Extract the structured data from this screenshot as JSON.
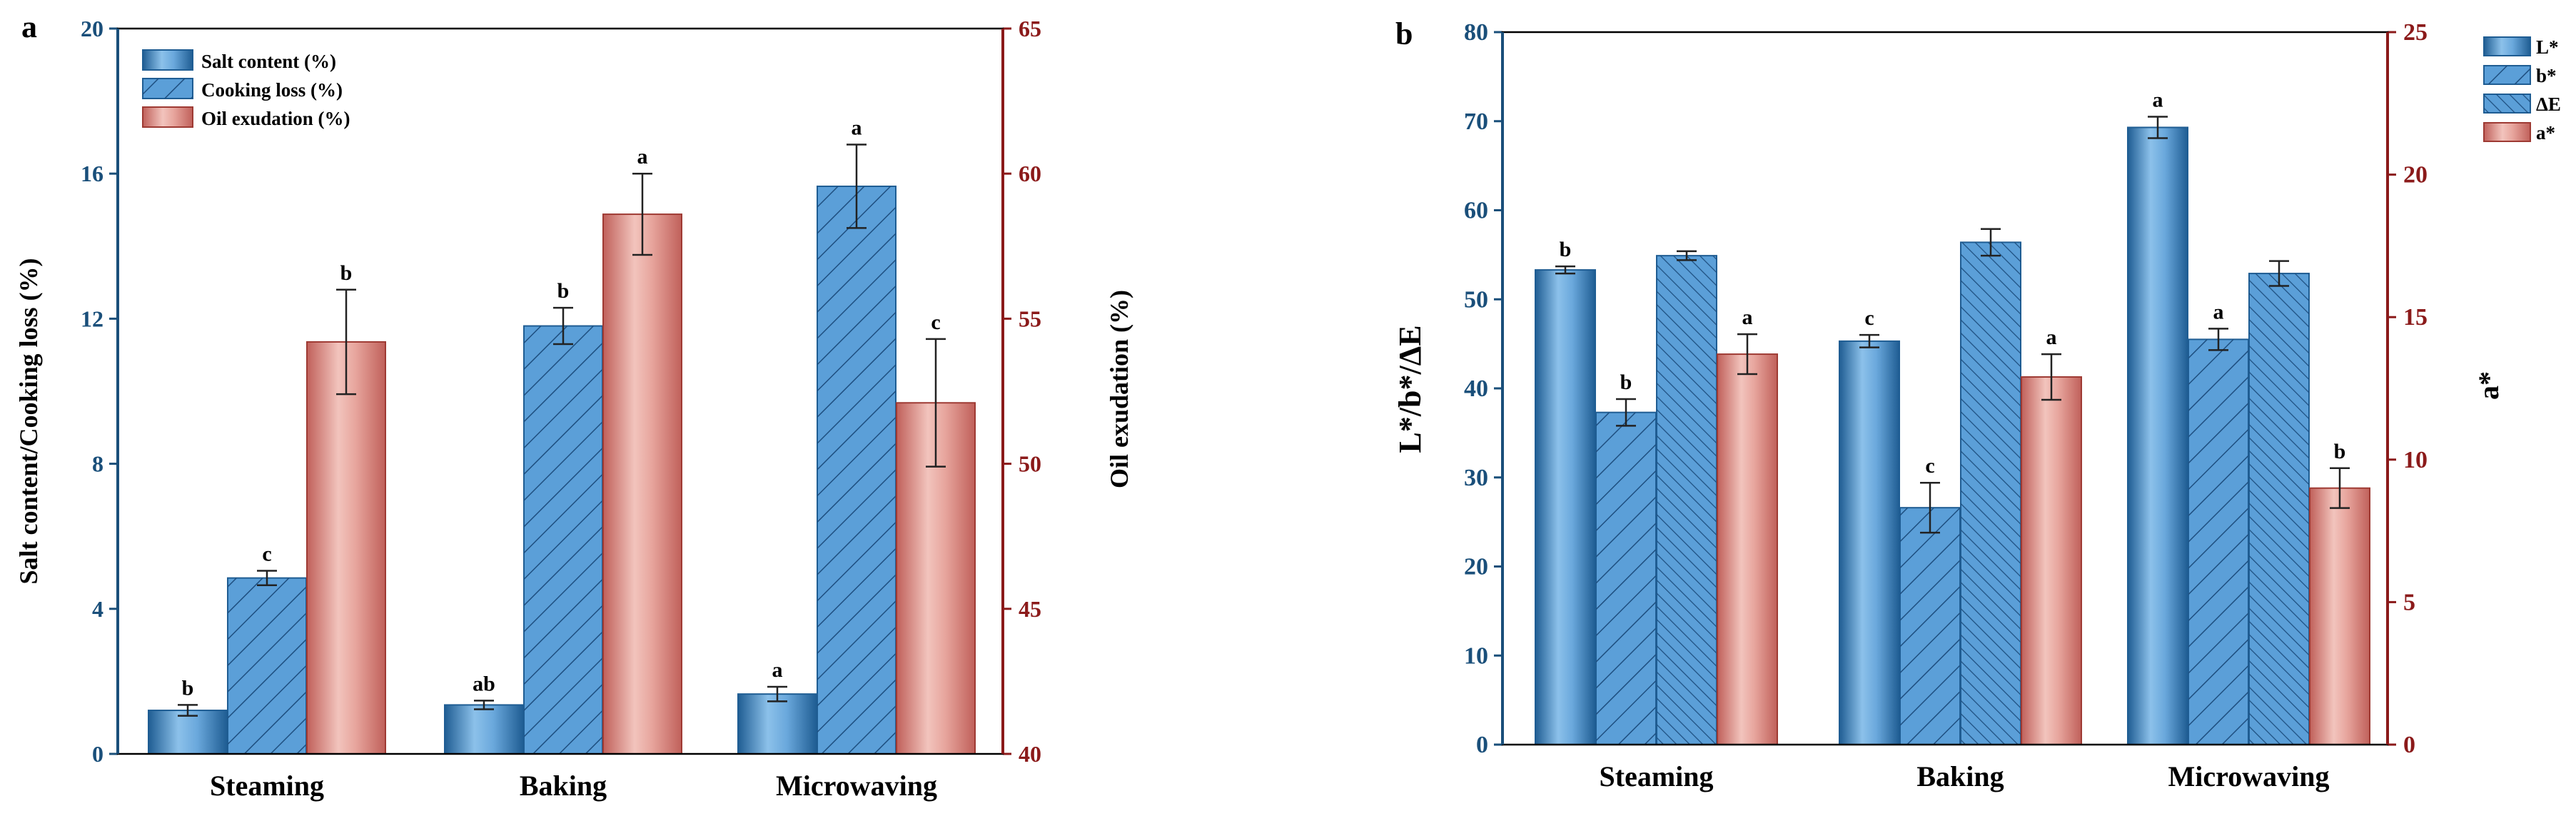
{
  "colors": {
    "blue": "#3f86c4",
    "blue_light": "#8cc1ea",
    "blue_dark": "#1f5d93",
    "red": "#d9827a",
    "red_light": "#f2c4bd",
    "red_dark": "#9e3a33",
    "left_axis": "#1a4f7a",
    "right_axis": "#8b1a1a"
  },
  "chart_data": [
    {
      "panel_label": "a",
      "type": "bar",
      "categories": [
        "Steaming",
        "Baking",
        "Microwaving"
      ],
      "ylabel": "Salt content/Cooking loss (%)",
      "ylabel_right": "Oil exudation (%)",
      "ylim": [
        0,
        20
      ],
      "yticks": [
        "0",
        "4",
        "8",
        "12",
        "16",
        "20"
      ],
      "ylim_right": [
        40,
        65
      ],
      "yticks_right": [
        "40",
        "45",
        "50",
        "55",
        "60",
        "65"
      ],
      "legend_position": "top-left",
      "series": [
        {
          "name": "Salt content (%)",
          "axis": "left",
          "fill": "solid",
          "color": "blue",
          "values": [
            1.2,
            1.35,
            1.65
          ],
          "errors": [
            0.15,
            0.12,
            0.2
          ],
          "letters": [
            "b",
            "ab",
            "a"
          ]
        },
        {
          "name": "Cooking loss (%)",
          "axis": "left",
          "fill": "hatch",
          "color": "blue",
          "values": [
            4.85,
            11.8,
            15.65
          ],
          "errors": [
            0.2,
            0.5,
            1.15
          ],
          "letters": [
            "c",
            "b",
            "a"
          ]
        },
        {
          "name": "Oil exudation (%)",
          "axis": "right",
          "fill": "solid",
          "color": "red",
          "values": [
            54.2,
            58.6,
            52.1
          ],
          "errors": [
            1.8,
            1.4,
            2.2
          ],
          "letters": [
            "b",
            "a",
            "c"
          ]
        }
      ]
    },
    {
      "panel_label": "b",
      "type": "bar",
      "categories": [
        "Steaming",
        "Baking",
        "Microwaving"
      ],
      "ylabel": "L*/b*/ΔE",
      "ylabel_right": "a*",
      "ylim": [
        0,
        80
      ],
      "yticks": [
        "0",
        "10",
        "20",
        "30",
        "40",
        "50",
        "60",
        "70",
        "80"
      ],
      "ylim_right": [
        0,
        25
      ],
      "yticks_right": [
        "0",
        "5",
        "10",
        "15",
        "20",
        "25"
      ],
      "legend_position": "top-right",
      "series": [
        {
          "name": "L*",
          "axis": "left",
          "fill": "solid",
          "color": "blue",
          "values": [
            53.3,
            45.3,
            69.3
          ],
          "errors": [
            0.4,
            0.7,
            1.2
          ],
          "letters": [
            "b",
            "c",
            "a"
          ]
        },
        {
          "name": "b*",
          "axis": "left",
          "fill": "hatch",
          "color": "blue",
          "values": [
            37.3,
            26.6,
            45.5
          ],
          "errors": [
            1.5,
            2.8,
            1.2
          ],
          "letters": [
            "b",
            "c",
            "a"
          ]
        },
        {
          "name": "ΔE",
          "axis": "left",
          "fill": "hatch2",
          "color": "blue",
          "values": [
            54.9,
            56.4,
            52.9
          ],
          "errors": [
            0.5,
            1.5,
            1.4
          ],
          "letters": [
            "",
            "",
            ""
          ]
        },
        {
          "name": "a*",
          "axis": "right",
          "fill": "solid",
          "color": "red",
          "values": [
            13.7,
            12.9,
            9.0
          ],
          "errors": [
            0.7,
            0.8,
            0.7
          ],
          "letters": [
            "a",
            "a",
            "b"
          ]
        }
      ]
    }
  ]
}
